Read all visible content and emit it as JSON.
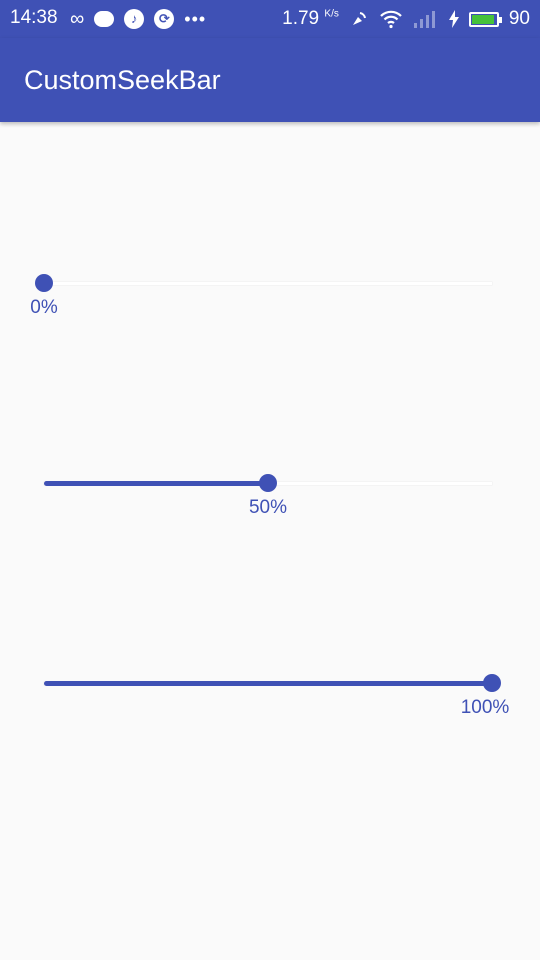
{
  "status_bar": {
    "time": "14:38",
    "network_speed": "1.79",
    "speed_unit": "K/s",
    "battery": "90",
    "battery_level": 0.9,
    "battery_color": "#46c23a"
  },
  "app_bar": {
    "title": "CustomSeekBar",
    "color": "#3f51b5"
  },
  "seekbars": [
    {
      "value": 0,
      "label": "0%"
    },
    {
      "value": 50,
      "label": "50%"
    },
    {
      "value": 100,
      "label": "100%"
    }
  ],
  "accent_color": "#3f51b5"
}
